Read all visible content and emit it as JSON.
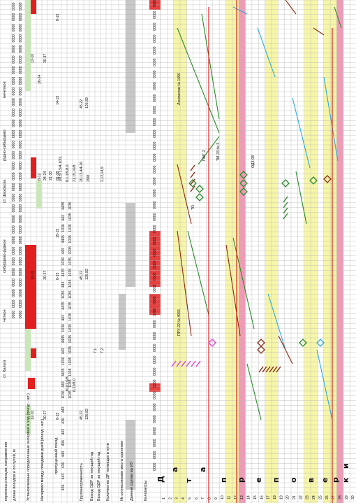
{
  "header": {
    "direction_label": "перегоны,станции, направления",
    "train_length_label": "длина поездов и по путей, м",
    "interval_label": "Установленные определенные интервал в ход (поезд - шт.)",
    "interval_between_label": "Интервал между поездами дней (поезд - шт.)",
    "trains_label": "пропущенный поезд",
    "cargo_label": "Грузонапряженность",
    "exit_label": "Выход ОДР за текущий год",
    "exit2_label": "Выход ОДР за текущий год",
    "count_dr_label": "Количество ДР тонкищих в пути",
    "noncoupled_label": "№ согласования места хранения",
    "sleeper_label": "Данные сцепки ва ИУ",
    "km_label": "Километры",
    "unit_min": "мин",
    "unit_chet": "чет",
    "unit_nechet": "нечет"
  },
  "sections": {
    "chetnoe": "четное",
    "nechetnoe": "нечетное",
    "kaluga": "ст. Калуга",
    "shakhovskaya": "ст. Шаховска",
    "sibir_rudnoe": "сибирцево-рудное",
    "rudnoe_sibir": "рудно-сибирцево"
  },
  "vertical_letters": [
    "Д",
    "а",
    "т",
    "а",
    "п",
    "р",
    "е",
    "п",
    "о",
    "в",
    "е",
    "р",
    "к",
    "и"
  ],
  "stats": {
    "v1": "12-10",
    "v2": "30-37",
    "v3": "8-15",
    "v4": "45,22",
    "v5": "126,82",
    "v6": "26-24",
    "v7": "14-15",
    "v8": "24-24",
    "v9": "8-12",
    "v10": "15-15",
    "v11": "21-30",
    "v12": "81-38"
  },
  "station_codes": {
    "top": [
      "0000",
      "0000",
      "0000",
      "0000",
      "0000",
      "0000",
      "0000",
      "0000",
      "0000",
      "0000",
      "0000",
      "0000",
      "0000",
      "0000"
    ],
    "c443": "443",
    "c436": "436",
    "c1036": "1036",
    "c1035": "1035",
    "c4435": "4435"
  },
  "notes": {
    "n1": "1/8,5/7,5/4,10/2,",
    "n2": "8,1,1/9,8,0",
    "n3": "21,15,16/8",
    "n4": "20,13,4/4-26",
    "n5": "29/8",
    "n6": "2,12,14,9",
    "n7": "8,22/8,0",
    "n8": "7,2",
    "n9": "10,07,6/8",
    "n10": "7,1"
  },
  "graph_labels": {
    "l1": "ПРУ-22 № 4065",
    "l2": "Локомотив № 1650",
    "l3": "ТМ-33 № 3",
    "l4": "ПМГ-2",
    "l5": "ОДЗ-08",
    "l6": "ТО"
  },
  "km_numbers": [
    "1",
    "2",
    "3",
    "4",
    "5",
    "6",
    "7",
    "8",
    "9",
    "10",
    "11",
    "12",
    "13",
    "14",
    "15",
    "16",
    "17",
    "18",
    "19",
    "20",
    "21",
    "22",
    "23",
    "24",
    "25",
    "26",
    "27",
    "28",
    "29",
    "30",
    "31"
  ],
  "colors": {
    "red_cell": "#e21f1f",
    "green_cell": "#c9e7b9",
    "yellow_band": "#f7f6a8",
    "pink_band": "#f19ab8",
    "gray_cell": "#9a9a9a",
    "green_line": "#2a8a2a",
    "blue_line": "#29a8e0",
    "brown_line": "#8a2a10",
    "red_line": "#e01010",
    "magenta": "#e040e0"
  }
}
